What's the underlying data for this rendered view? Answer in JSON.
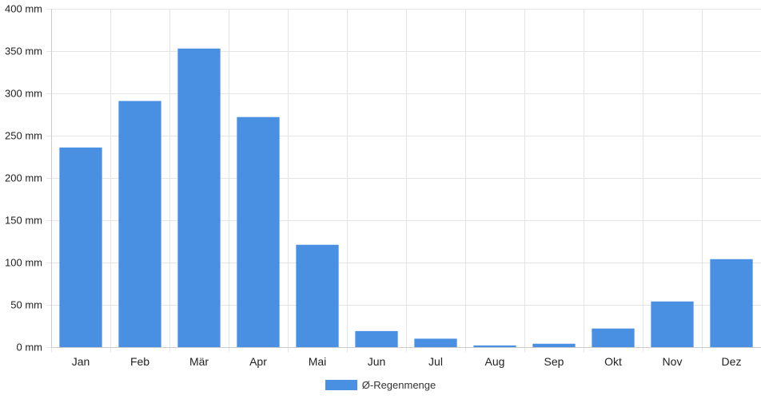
{
  "colors": {
    "bar": "#4a90e2",
    "grid": "#e5e5e5",
    "axis": "#cccccc",
    "text": "#222222"
  },
  "chart_data": {
    "type": "bar",
    "categories": [
      "Jan",
      "Feb",
      "Mär",
      "Apr",
      "Mai",
      "Jun",
      "Jul",
      "Aug",
      "Sep",
      "Okt",
      "Nov",
      "Dez"
    ],
    "y_tick_labels": [
      "0 mm",
      "50 mm",
      "100 mm",
      "150 mm",
      "200 mm",
      "250 mm",
      "300 mm",
      "350 mm",
      "400 mm"
    ],
    "series": [
      {
        "name": "Ø-Regenmenge",
        "values": [
          236,
          291,
          353,
          272,
          121,
          19,
          10,
          2,
          4,
          22,
          54,
          104
        ]
      }
    ],
    "ylim": [
      0,
      400
    ],
    "y_tick_step": 50,
    "grid": true,
    "legend_position": "bottom"
  }
}
